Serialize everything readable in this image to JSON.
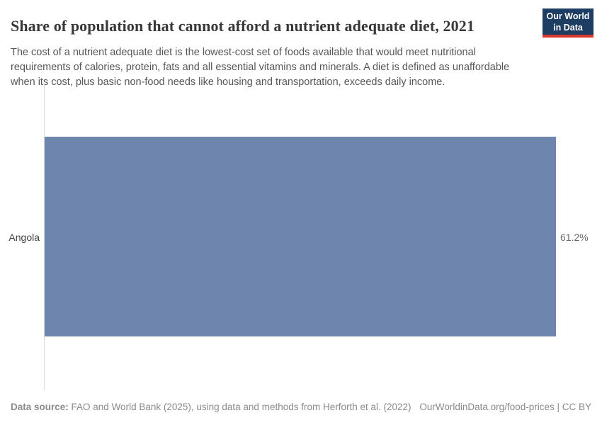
{
  "header": {
    "title": "Share of population that cannot afford a nutrient adequate diet, 2021",
    "subtitle": "The cost of a nutrient adequate diet is the lowest-cost set of foods available that would meet nutritional requirements of calories, protein, fats and all essential vitamins and minerals. A diet is defined as unaffordable when its cost, plus basic non-food needs like housing and transportation, exceeds daily income.",
    "logo": {
      "line1": "Our World",
      "line2": "in Data",
      "bg_color": "#1d3d63",
      "stripe_color": "#dc352c"
    }
  },
  "chart_data": {
    "type": "bar",
    "orientation": "horizontal",
    "title": "Share of population that cannot afford a nutrient adequate diet, 2021",
    "year": "2021",
    "categories": [
      "Angola"
    ],
    "values": [
      61.2
    ],
    "value_labels": [
      "61.2%"
    ],
    "xlim": [
      0,
      61.2
    ],
    "grid": false,
    "legend": "none",
    "bar_color": "#6e86ad",
    "axis_line_color": "#dadada"
  },
  "footer": {
    "source_label": "Data source:",
    "source_text": " FAO and World Bank (2025), using data and methods from Herforth et al. (2022)",
    "attribution": "OurWorldinData.org/food-prices | CC BY"
  }
}
